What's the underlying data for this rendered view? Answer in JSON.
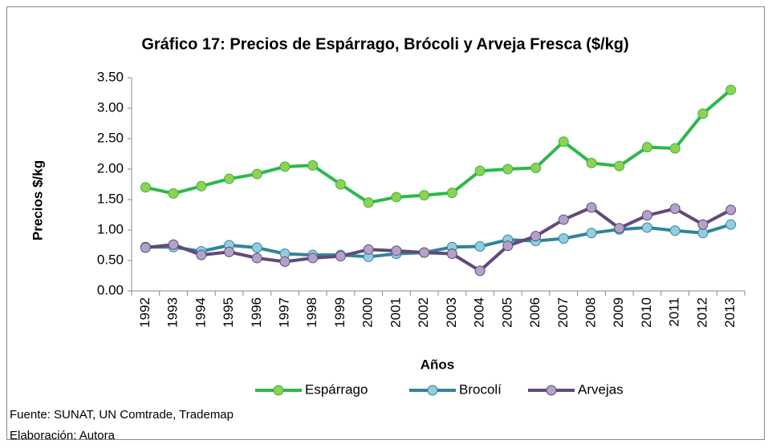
{
  "chart_data": {
    "type": "line",
    "title": "Gráfico 17: Precios de Espárrago, Brócoli y Arveja Fresca ($/kg)",
    "xlabel": "Años",
    "ylabel": "Precios $/kg",
    "categories": [
      "1992",
      "1993",
      "1994",
      "1995",
      "1996",
      "1997",
      "1998",
      "1999",
      "2000",
      "2001",
      "2002",
      "2003",
      "2004",
      "2005",
      "2006",
      "2007",
      "2008",
      "2009",
      "2010",
      "2011",
      "2012",
      "2013"
    ],
    "series": [
      {
        "name": "Espárrago",
        "color": "#2db84a",
        "marker_color": "#92d050",
        "values": [
          1.7,
          1.6,
          1.72,
          1.84,
          1.92,
          2.04,
          2.06,
          1.75,
          1.45,
          1.54,
          1.57,
          1.61,
          1.97,
          2.0,
          2.02,
          2.45,
          2.1,
          2.05,
          2.36,
          2.34,
          2.91,
          3.3
        ]
      },
      {
        "name": "Brocolí",
        "color": "#31849b",
        "marker_color": "#93cddd",
        "values": [
          0.72,
          0.72,
          0.65,
          0.75,
          0.71,
          0.61,
          0.59,
          0.59,
          0.56,
          0.61,
          0.63,
          0.72,
          0.73,
          0.84,
          0.82,
          0.86,
          0.95,
          1.01,
          1.04,
          0.99,
          0.95,
          1.09
        ]
      },
      {
        "name": "Arvejas",
        "color": "#604a7b",
        "marker_color": "#b3a2c7",
        "values": [
          0.71,
          0.76,
          0.59,
          0.64,
          0.54,
          0.48,
          0.54,
          0.57,
          0.68,
          0.66,
          0.63,
          0.61,
          0.33,
          0.74,
          0.9,
          1.17,
          1.37,
          1.03,
          1.24,
          1.35,
          1.09,
          1.33
        ]
      }
    ],
    "ylim": [
      0,
      3.5
    ],
    "yticks": [
      {
        "value": 0,
        "label": "0.00"
      },
      {
        "value": 0.5,
        "label": "0.50"
      },
      {
        "value": 1,
        "label": "1.00"
      },
      {
        "value": 1.5,
        "label": "1.50"
      },
      {
        "value": 2,
        "label": "2.00"
      },
      {
        "value": 2.5,
        "label": "2.50"
      },
      {
        "value": 3,
        "label": "3.00"
      },
      {
        "value": 3.5,
        "label": "3.50"
      }
    ],
    "grid": false,
    "legend": "bottom"
  },
  "footnotes": [
    "Fuente: SUNAT, UN Comtrade, Trademap",
    "Elaboración: Autora"
  ]
}
